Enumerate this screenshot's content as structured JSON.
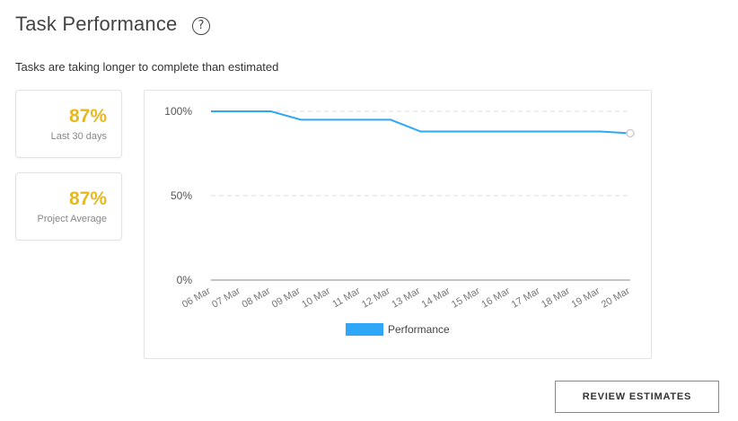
{
  "header": {
    "title": "Task Performance",
    "help_icon": "question-circle-icon",
    "help_glyph": "?"
  },
  "subtitle": "Tasks are taking longer to complete than estimated",
  "stats": [
    {
      "value": "87%",
      "label": "Last 30 days"
    },
    {
      "value": "87%",
      "label": "Project Average"
    }
  ],
  "colors": {
    "accent_yellow": "#e6b91e",
    "series_blue": "#2ea7f8"
  },
  "chart_data": {
    "type": "line",
    "categories": [
      "06 Mar",
      "07 Mar",
      "08 Mar",
      "09 Mar",
      "10 Mar",
      "11 Mar",
      "12 Mar",
      "13 Mar",
      "14 Mar",
      "15 Mar",
      "16 Mar",
      "17 Mar",
      "18 Mar",
      "19 Mar",
      "20 Mar"
    ],
    "series": [
      {
        "name": "Performance",
        "values": [
          100,
          100,
          100,
          95,
          95,
          95,
          95,
          88,
          88,
          88,
          88,
          88,
          88,
          88,
          87
        ],
        "color": "#2ea7f8"
      }
    ],
    "yticks": [
      "0%",
      "50%",
      "100%"
    ],
    "ylim": [
      0,
      100
    ],
    "grid": true,
    "legend": "bottom"
  },
  "actions": {
    "review_label": "REVIEW ESTIMATES"
  }
}
